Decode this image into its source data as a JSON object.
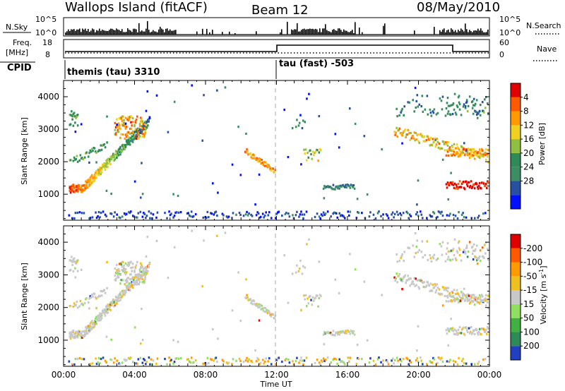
{
  "header": {
    "station": "Wallops Island (fitACF)",
    "beam": "Beam 12",
    "date": "08/May/2010"
  },
  "top_panels": {
    "nsky_label": "N.Sky",
    "nsearch_label": "N.Search",
    "nsky_ticks": [
      "10^5",
      "10^0"
    ],
    "nsearch_ticks": [
      "10^5",
      "10^0"
    ],
    "freq_label_line1": "Freq.",
    "freq_label_line2": "[MHz]",
    "freq_ticks": [
      "18",
      "8"
    ],
    "nave_label": "Nave",
    "nave_ticks": [
      "60",
      "0"
    ],
    "cpid_label": "CPID",
    "cpid_segments": [
      {
        "text": "themis (tau) 3310",
        "start_hour": 0
      },
      {
        "text": "tau (fast) -503",
        "start_hour": 12
      }
    ]
  },
  "chart_data": [
    {
      "type": "heatmap",
      "panel": "power",
      "ylabel": "Slant Range [km]",
      "y_ticks": [
        1000,
        2000,
        3000,
        4000
      ],
      "ylim": [
        200,
        4500
      ],
      "xlim": [
        0,
        24
      ],
      "colorbar": {
        "label": "Power [dB]",
        "ticks": [
          "4",
          "8",
          "12",
          "16",
          "20",
          "24",
          "28"
        ],
        "colors": [
          "#0010ff",
          "#2850a0",
          "#3c8c64",
          "#2e8b57",
          "#90c040",
          "#f0d020",
          "#ff9a00",
          "#ff5a00",
          "#e00000"
        ]
      },
      "echo_regions": [
        {
          "hours": [
            0.0,
            4.8
          ],
          "range_km": [
            1000,
            3400
          ],
          "desc": "arc"
        },
        {
          "hours": [
            10.2,
            12.0
          ],
          "range_km": [
            1500,
            2300
          ]
        },
        {
          "hours": [
            13.5,
            14.5
          ],
          "range_km": [
            1900,
            2400
          ]
        },
        {
          "hours": [
            14.8,
            16.2
          ],
          "range_km": [
            1150,
            1300
          ]
        },
        {
          "hours": [
            19.0,
            24.0
          ],
          "range_km": [
            1100,
            4200
          ]
        }
      ]
    },
    {
      "type": "heatmap",
      "panel": "velocity",
      "ylabel": "Slant Range [km]",
      "y_ticks": [
        1000,
        2000,
        3000,
        4000
      ],
      "ylim": [
        200,
        4500
      ],
      "xlim": [
        0,
        24
      ],
      "xlabel": "Time UT",
      "x_ticks": [
        "00:00",
        "04:00",
        "08:00",
        "12:00",
        "16:00",
        "20:00",
        "00:00"
      ],
      "colorbar": {
        "label": "Velocity [m s",
        "label_sup": "-1",
        "label_end": "]",
        "ticks": [
          "200",
          "100",
          "50",
          "15",
          "-15",
          "-50",
          "-100",
          "-200"
        ],
        "colors": [
          "#2040c0",
          "#2e8b57",
          "#40b040",
          "#90e060",
          "#c8c8c8",
          "#f0c020",
          "#ff9a00",
          "#ff5a00",
          "#e00000"
        ]
      }
    }
  ]
}
